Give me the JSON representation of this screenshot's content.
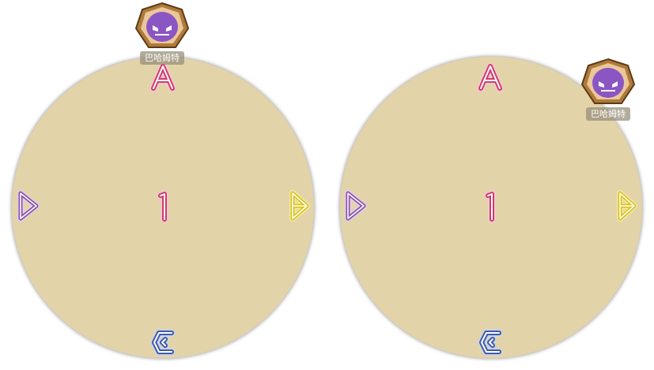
{
  "colors": {
    "arena": "#e3d3a9",
    "marker_a": "#d23a6a",
    "marker_b": "#d8c21e",
    "marker_c": "#3d5aa8",
    "marker_d": "#8a4fa8",
    "marker_1": "#d23a6a",
    "boss_frame": "#b07a3a",
    "boss_face": "#8b55c4"
  },
  "icons": {
    "boss": "hooded-mask-icon",
    "markers": [
      "waymark-a-icon",
      "waymark-b-icon",
      "waymark-c-icon",
      "waymark-d-icon",
      "waymark-1-icon"
    ]
  },
  "panels": [
    {
      "boss": {
        "name": "巴哈姆特",
        "position": "north-edge"
      }
    },
    {
      "boss": {
        "name": "巴哈姆特",
        "position": "northeast-edge"
      }
    }
  ]
}
